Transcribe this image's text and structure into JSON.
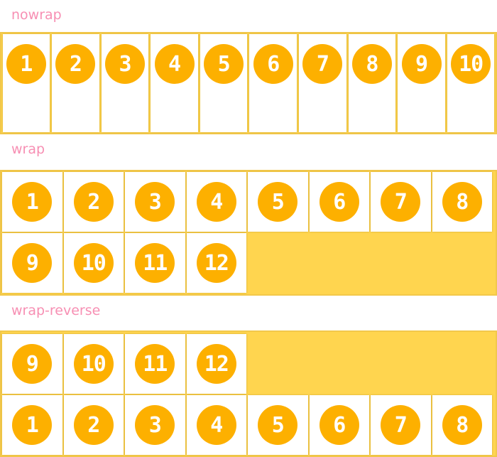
{
  "sections": [
    {
      "label": "nowrap",
      "mode": "nowrap",
      "items": [
        "1",
        "2",
        "3",
        "4",
        "5",
        "6",
        "7",
        "8",
        "9",
        "10"
      ]
    },
    {
      "label": "wrap",
      "mode": "wrap",
      "items": [
        "1",
        "2",
        "3",
        "4",
        "5",
        "6",
        "7",
        "8",
        "9",
        "10",
        "11",
        "12"
      ]
    },
    {
      "label": "wrap-reverse",
      "mode": "wrap-reverse",
      "items": [
        "1",
        "2",
        "3",
        "4",
        "5",
        "6",
        "7",
        "8",
        "9",
        "10",
        "11",
        "12"
      ]
    }
  ],
  "colors": {
    "label": "#f78fb3",
    "container": "#ffd54f",
    "circle": "#fdb000"
  }
}
